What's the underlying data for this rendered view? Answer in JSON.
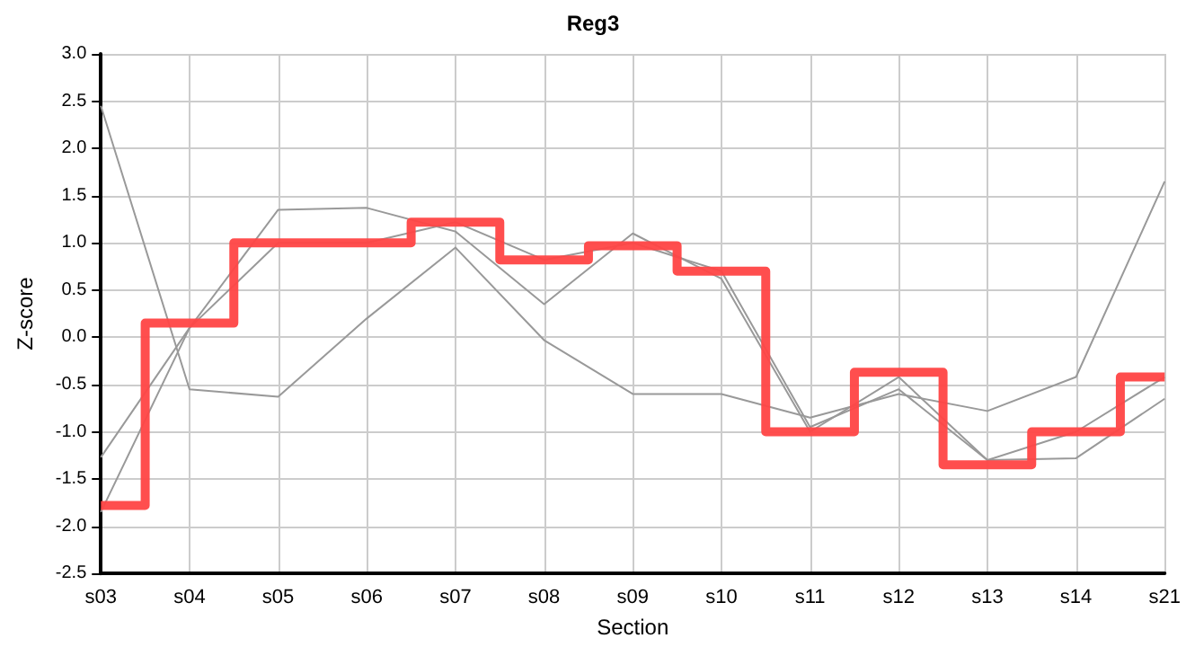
{
  "chart_data": {
    "type": "line",
    "title": "Reg3",
    "xlabel": "Section",
    "ylabel": "Z-score",
    "categories": [
      "s03",
      "s04",
      "s05",
      "s06",
      "s07",
      "s08",
      "s09",
      "s10",
      "s11",
      "s12",
      "s13",
      "s14",
      "s21"
    ],
    "series": [
      {
        "color": "#999999",
        "values": [
          2.45,
          -0.55,
          -0.63,
          0.2,
          0.95,
          -0.03,
          -0.6,
          -0.6,
          -0.85,
          -0.6,
          -0.78,
          -0.42,
          1.65
        ]
      },
      {
        "color": "#999999",
        "values": [
          -1.85,
          0.1,
          1.35,
          1.37,
          1.12,
          0.35,
          1.1,
          0.62,
          -1.0,
          -0.42,
          -1.3,
          -1.28,
          -0.65
        ]
      },
      {
        "color": "#999999",
        "values": [
          -1.27,
          0.1,
          1.0,
          1.0,
          1.22,
          0.82,
          1.0,
          0.7,
          -0.95,
          -0.55,
          -1.3,
          -1.0,
          -0.42
        ]
      },
      {
        "type": "step",
        "color": "#ff4444",
        "values": [
          -1.78,
          0.15,
          1.0,
          1.0,
          1.22,
          0.82,
          0.97,
          0.7,
          -1.0,
          -0.37,
          -1.35,
          -1.0,
          -0.42
        ]
      }
    ],
    "ylim": [
      -2.5,
      3.0
    ],
    "yticks": [
      {
        "value": -2.5,
        "label": "-2.5"
      },
      {
        "value": -2,
        "label": "-2.0"
      },
      {
        "value": -1.5,
        "label": "-1.5"
      },
      {
        "value": -1,
        "label": "-1.0"
      },
      {
        "value": -0.5,
        "label": "-0.5"
      },
      {
        "value": 0,
        "label": "0.0"
      },
      {
        "value": 0.5,
        "label": "0.5"
      },
      {
        "value": 1,
        "label": "1.0"
      },
      {
        "value": 1.5,
        "label": "1.5"
      },
      {
        "value": 2,
        "label": "2.0"
      },
      {
        "value": 2.5,
        "label": "2.5"
      },
      {
        "value": 3,
        "label": "3.0"
      }
    ],
    "grid": true,
    "marker": "none",
    "line_style": "solid"
  }
}
